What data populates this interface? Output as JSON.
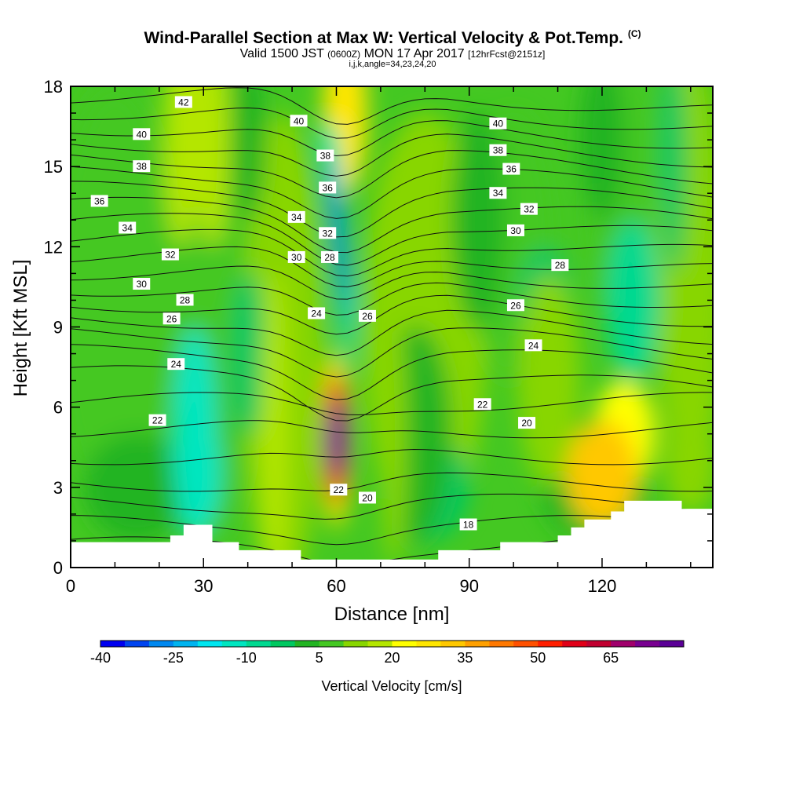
{
  "header": {
    "title": "Wind-Parallel Section at Max W: Vertical Velocity & Pot.Temp.",
    "title_mark": "(C)",
    "valid_prefix": "Valid 1500 JST",
    "valid_utc": "(0600Z)",
    "valid_date": "MON 17 Apr 2017",
    "forecast_note": "[12hrFcst@2151z]",
    "indices": "i,j,k,angle=34,23,24,20"
  },
  "chart_data": {
    "type": "heatmap",
    "xlabel": "Distance [nm]",
    "ylabel": "Height [Kft MSL]",
    "xlim": [
      0,
      145
    ],
    "ylim": [
      0,
      18
    ],
    "x_ticks": [
      "0",
      "30",
      "60",
      "90",
      "120"
    ],
    "x_tick_values": [
      0,
      30,
      60,
      90,
      120
    ],
    "y_ticks": [
      "0",
      "3",
      "6",
      "9",
      "12",
      "15",
      "18"
    ],
    "y_tick_values": [
      0,
      3,
      6,
      9,
      12,
      15,
      18
    ],
    "colorbar": {
      "title": "Vertical Velocity [cm/s]",
      "range": [
        -40,
        80
      ],
      "step": 5,
      "labels": [
        "-40",
        "-25",
        "-10",
        "5",
        "20",
        "35",
        "50",
        "65"
      ],
      "label_values": [
        -40,
        -25,
        -10,
        5,
        20,
        35,
        50,
        65
      ],
      "colors": [
        "#0000f0",
        "#0044f0",
        "#0088f0",
        "#00b4f0",
        "#00e6f0",
        "#00e6c0",
        "#00d990",
        "#00c860",
        "#22b422",
        "#44c822",
        "#88d600",
        "#b4e600",
        "#ffff00",
        "#ffe600",
        "#ffc800",
        "#ffa000",
        "#ff7800",
        "#ff5000",
        "#ff1e00",
        "#e00018",
        "#c00030",
        "#a0006c",
        "#780090",
        "#5a0096"
      ]
    },
    "contour_labels": [
      {
        "text": "42",
        "x": 25.5,
        "y": 17.4
      },
      {
        "text": "40",
        "x": 16.0,
        "y": 16.2
      },
      {
        "text": "38",
        "x": 16.0,
        "y": 15.0
      },
      {
        "text": "36",
        "x": 6.5,
        "y": 13.7
      },
      {
        "text": "34",
        "x": 12.8,
        "y": 12.7
      },
      {
        "text": "32",
        "x": 22.5,
        "y": 11.7
      },
      {
        "text": "30",
        "x": 16.0,
        "y": 10.6
      },
      {
        "text": "28",
        "x": 25.8,
        "y": 10.0
      },
      {
        "text": "26",
        "x": 22.8,
        "y": 9.3
      },
      {
        "text": "24",
        "x": 23.8,
        "y": 7.6
      },
      {
        "text": "22",
        "x": 19.6,
        "y": 5.5
      },
      {
        "text": "40",
        "x": 51.5,
        "y": 16.7
      },
      {
        "text": "38",
        "x": 57.5,
        "y": 15.4
      },
      {
        "text": "36",
        "x": 58.0,
        "y": 14.2
      },
      {
        "text": "34",
        "x": 51.0,
        "y": 13.1
      },
      {
        "text": "32",
        "x": 58.0,
        "y": 12.5
      },
      {
        "text": "30",
        "x": 51.0,
        "y": 11.6
      },
      {
        "text": "28",
        "x": 58.5,
        "y": 11.6
      },
      {
        "text": "24",
        "x": 55.5,
        "y": 9.5
      },
      {
        "text": "26",
        "x": 67.0,
        "y": 9.4
      },
      {
        "text": "22",
        "x": 60.5,
        "y": 2.9
      },
      {
        "text": "20",
        "x": 67.0,
        "y": 2.6
      },
      {
        "text": "18",
        "x": 89.8,
        "y": 1.6
      },
      {
        "text": "40",
        "x": 96.5,
        "y": 16.6
      },
      {
        "text": "38",
        "x": 96.5,
        "y": 15.6
      },
      {
        "text": "36",
        "x": 99.5,
        "y": 14.9
      },
      {
        "text": "34",
        "x": 96.5,
        "y": 14.0
      },
      {
        "text": "32",
        "x": 103.5,
        "y": 13.4
      },
      {
        "text": "30",
        "x": 100.5,
        "y": 12.6
      },
      {
        "text": "28",
        "x": 110.5,
        "y": 11.3
      },
      {
        "text": "26",
        "x": 100.5,
        "y": 9.8
      },
      {
        "text": "24",
        "x": 104.5,
        "y": 8.3
      },
      {
        "text": "22",
        "x": 93.0,
        "y": 6.1
      },
      {
        "text": "20",
        "x": 103.0,
        "y": 5.4
      }
    ],
    "terrain": [
      [
        0,
        0.95
      ],
      [
        22.5,
        0.95
      ],
      [
        22.5,
        1.2
      ],
      [
        25.5,
        1.2
      ],
      [
        25.5,
        1.6
      ],
      [
        32,
        1.6
      ],
      [
        32,
        0.95
      ],
      [
        38,
        0.95
      ],
      [
        38,
        0.65
      ],
      [
        52,
        0.65
      ],
      [
        52,
        0.3
      ],
      [
        83,
        0.3
      ],
      [
        83,
        0.65
      ],
      [
        97,
        0.65
      ],
      [
        97,
        0.95
      ],
      [
        110,
        0.95
      ],
      [
        110,
        1.2
      ],
      [
        113,
        1.2
      ],
      [
        113,
        1.5
      ],
      [
        116,
        1.5
      ],
      [
        116,
        1.8
      ],
      [
        122,
        1.8
      ],
      [
        122,
        2.1
      ],
      [
        125,
        2.1
      ],
      [
        125,
        2.5
      ],
      [
        138,
        2.5
      ],
      [
        138,
        2.2
      ],
      [
        145,
        2.2
      ]
    ]
  }
}
